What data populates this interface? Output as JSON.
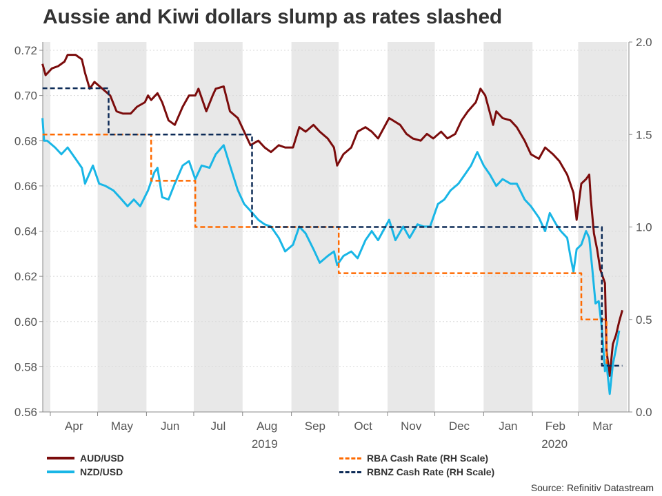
{
  "title": "Aussie and Kiwi dollars slump as rates slashed",
  "source": "Source: Refinitiv Datastream",
  "chart_data": {
    "type": "line",
    "title": "Aussie and Kiwi dollars slump as rates slashed",
    "x_range": [
      "2019-03-27",
      "2020-03-31"
    ],
    "month_labels": [
      "Apr",
      "May",
      "Jun",
      "Jul",
      "Aug",
      "Sep",
      "Oct",
      "Nov",
      "Dec",
      "Jan",
      "Feb",
      "Mar"
    ],
    "year_labels": [
      {
        "text": "2019",
        "month": "2019-08"
      },
      {
        "text": "2020",
        "month": "2020-02"
      }
    ],
    "left_axis": {
      "ylim": [
        0.56,
        0.72
      ],
      "ticks": [
        "0.56",
        "0.58",
        "0.60",
        "0.62",
        "0.64",
        "0.66",
        "0.68",
        "0.70",
        "0.72"
      ]
    },
    "right_axis": {
      "ylim": [
        0.0,
        2.0
      ],
      "ticks": [
        "0.0",
        "0.5",
        "1.0",
        "1.5",
        "2.0"
      ]
    },
    "shading": "alternate months shaded grey",
    "grid": true,
    "legend_position": "bottom",
    "colors": {
      "aud": "#7b0c0c",
      "nzd": "#19b6e6",
      "rba": "#ff6a00",
      "rbnz": "#0d2b57",
      "shade": "#e8e8e8"
    },
    "series": [
      {
        "name": "AUD/USD",
        "axis": "left",
        "style": "solid",
        "color": "#7b0c0c",
        "points": [
          [
            "2019-03-27",
            0.714
          ],
          [
            "2019-03-29",
            0.709
          ],
          [
            "2019-04-02",
            0.712
          ],
          [
            "2019-04-06",
            0.713
          ],
          [
            "2019-04-10",
            0.715
          ],
          [
            "2019-04-12",
            0.718
          ],
          [
            "2019-04-17",
            0.718
          ],
          [
            "2019-04-21",
            0.716
          ],
          [
            "2019-04-23",
            0.71
          ],
          [
            "2019-04-26",
            0.703
          ],
          [
            "2019-04-29",
            0.706
          ],
          [
            "2019-05-04",
            0.703
          ],
          [
            "2019-05-09",
            0.7
          ],
          [
            "2019-05-13",
            0.693
          ],
          [
            "2019-05-17",
            0.692
          ],
          [
            "2019-05-22",
            0.692
          ],
          [
            "2019-05-26",
            0.695
          ],
          [
            "2019-05-31",
            0.697
          ],
          [
            "2019-06-02",
            0.7
          ],
          [
            "2019-06-04",
            0.698
          ],
          [
            "2019-06-08",
            0.701
          ],
          [
            "2019-06-11",
            0.697
          ],
          [
            "2019-06-15",
            0.689
          ],
          [
            "2019-06-19",
            0.687
          ],
          [
            "2019-06-24",
            0.695
          ],
          [
            "2019-06-28",
            0.7
          ],
          [
            "2019-07-02",
            0.7
          ],
          [
            "2019-07-04",
            0.703
          ],
          [
            "2019-07-09",
            0.693
          ],
          [
            "2019-07-13",
            0.7
          ],
          [
            "2019-07-15",
            0.703
          ],
          [
            "2019-07-20",
            0.704
          ],
          [
            "2019-07-24",
            0.693
          ],
          [
            "2019-07-29",
            0.69
          ],
          [
            "2019-08-02",
            0.684
          ],
          [
            "2019-08-06",
            0.678
          ],
          [
            "2019-08-11",
            0.68
          ],
          [
            "2019-08-15",
            0.677
          ],
          [
            "2019-08-19",
            0.675
          ],
          [
            "2019-08-24",
            0.678
          ],
          [
            "2019-08-28",
            0.677
          ],
          [
            "2019-09-02",
            0.677
          ],
          [
            "2019-09-06",
            0.686
          ],
          [
            "2019-09-10",
            0.684
          ],
          [
            "2019-09-15",
            0.687
          ],
          [
            "2019-09-19",
            0.684
          ],
          [
            "2019-09-24",
            0.681
          ],
          [
            "2019-09-28",
            0.677
          ],
          [
            "2019-09-30",
            0.669
          ],
          [
            "2019-10-04",
            0.674
          ],
          [
            "2019-10-09",
            0.677
          ],
          [
            "2019-10-13",
            0.684
          ],
          [
            "2019-10-18",
            0.686
          ],
          [
            "2019-10-22",
            0.684
          ],
          [
            "2019-10-26",
            0.681
          ],
          [
            "2019-11-02",
            0.69
          ],
          [
            "2019-11-09",
            0.687
          ],
          [
            "2019-11-13",
            0.683
          ],
          [
            "2019-11-17",
            0.681
          ],
          [
            "2019-11-22",
            0.68
          ],
          [
            "2019-11-26",
            0.683
          ],
          [
            "2019-11-30",
            0.681
          ],
          [
            "2019-12-05",
            0.684
          ],
          [
            "2019-12-09",
            0.681
          ],
          [
            "2019-12-14",
            0.683
          ],
          [
            "2019-12-18",
            0.689
          ],
          [
            "2019-12-22",
            0.693
          ],
          [
            "2019-12-27",
            0.697
          ],
          [
            "2019-12-30",
            0.703
          ],
          [
            "2020-01-02",
            0.7
          ],
          [
            "2020-01-07",
            0.687
          ],
          [
            "2020-01-09",
            0.693
          ],
          [
            "2020-01-13",
            0.69
          ],
          [
            "2020-01-18",
            0.689
          ],
          [
            "2020-01-22",
            0.686
          ],
          [
            "2020-01-27",
            0.68
          ],
          [
            "2020-01-31",
            0.674
          ],
          [
            "2020-02-05",
            0.672
          ],
          [
            "2020-02-09",
            0.677
          ],
          [
            "2020-02-14",
            0.674
          ],
          [
            "2020-02-18",
            0.671
          ],
          [
            "2020-02-23",
            0.665
          ],
          [
            "2020-02-27",
            0.657
          ],
          [
            "2020-02-29",
            0.645
          ],
          [
            "2020-03-03",
            0.661
          ],
          [
            "2020-03-06",
            0.663
          ],
          [
            "2020-03-08",
            0.665
          ],
          [
            "2020-03-09",
            0.654
          ],
          [
            "2020-03-11",
            0.639
          ],
          [
            "2020-03-13",
            0.632
          ],
          [
            "2020-03-15",
            0.623
          ],
          [
            "2020-03-18",
            0.617
          ],
          [
            "2020-03-19",
            0.587
          ],
          [
            "2020-03-21",
            0.576
          ],
          [
            "2020-03-23",
            0.59
          ],
          [
            "2020-03-25",
            0.594
          ],
          [
            "2020-03-27",
            0.6
          ],
          [
            "2020-03-29",
            0.605
          ]
        ]
      },
      {
        "name": "NZD/USD",
        "axis": "left",
        "style": "solid",
        "color": "#19b6e6",
        "points": [
          [
            "2019-03-27",
            0.69
          ],
          [
            "2019-03-28",
            0.68
          ],
          [
            "2019-03-30",
            0.68
          ],
          [
            "2019-04-04",
            0.677
          ],
          [
            "2019-04-08",
            0.674
          ],
          [
            "2019-04-12",
            0.677
          ],
          [
            "2019-04-17",
            0.672
          ],
          [
            "2019-04-21",
            0.668
          ],
          [
            "2019-04-23",
            0.661
          ],
          [
            "2019-04-28",
            0.669
          ],
          [
            "2019-05-02",
            0.661
          ],
          [
            "2019-05-06",
            0.66
          ],
          [
            "2019-05-11",
            0.658
          ],
          [
            "2019-05-15",
            0.655
          ],
          [
            "2019-05-20",
            0.651
          ],
          [
            "2019-05-24",
            0.654
          ],
          [
            "2019-05-28",
            0.651
          ],
          [
            "2019-06-02",
            0.658
          ],
          [
            "2019-06-06",
            0.666
          ],
          [
            "2019-06-08",
            0.668
          ],
          [
            "2019-06-11",
            0.655
          ],
          [
            "2019-06-15",
            0.654
          ],
          [
            "2019-06-19",
            0.661
          ],
          [
            "2019-06-24",
            0.669
          ],
          [
            "2019-06-28",
            0.671
          ],
          [
            "2019-07-02",
            0.663
          ],
          [
            "2019-07-06",
            0.669
          ],
          [
            "2019-07-11",
            0.668
          ],
          [
            "2019-07-15",
            0.674
          ],
          [
            "2019-07-20",
            0.678
          ],
          [
            "2019-07-24",
            0.669
          ],
          [
            "2019-07-29",
            0.658
          ],
          [
            "2019-08-02",
            0.652
          ],
          [
            "2019-08-06",
            0.649
          ],
          [
            "2019-08-11",
            0.645
          ],
          [
            "2019-08-15",
            0.643
          ],
          [
            "2019-08-19",
            0.642
          ],
          [
            "2019-08-24",
            0.637
          ],
          [
            "2019-08-28",
            0.631
          ],
          [
            "2019-09-02",
            0.634
          ],
          [
            "2019-09-06",
            0.642
          ],
          [
            "2019-09-10",
            0.639
          ],
          [
            "2019-09-15",
            0.632
          ],
          [
            "2019-09-19",
            0.626
          ],
          [
            "2019-09-24",
            0.629
          ],
          [
            "2019-09-28",
            0.631
          ],
          [
            "2019-09-30",
            0.625
          ],
          [
            "2019-10-04",
            0.629
          ],
          [
            "2019-10-09",
            0.631
          ],
          [
            "2019-10-13",
            0.628
          ],
          [
            "2019-10-18",
            0.636
          ],
          [
            "2019-10-22",
            0.64
          ],
          [
            "2019-10-26",
            0.636
          ],
          [
            "2019-11-02",
            0.645
          ],
          [
            "2019-11-06",
            0.636
          ],
          [
            "2019-11-11",
            0.642
          ],
          [
            "2019-11-15",
            0.637
          ],
          [
            "2019-11-20",
            0.643
          ],
          [
            "2019-11-24",
            0.642
          ],
          [
            "2019-11-28",
            0.642
          ],
          [
            "2019-12-03",
            0.652
          ],
          [
            "2019-12-07",
            0.654
          ],
          [
            "2019-12-11",
            0.658
          ],
          [
            "2019-12-16",
            0.661
          ],
          [
            "2019-12-20",
            0.665
          ],
          [
            "2019-12-24",
            0.669
          ],
          [
            "2019-12-28",
            0.675
          ],
          [
            "2020-01-01",
            0.669
          ],
          [
            "2020-01-05",
            0.665
          ],
          [
            "2020-01-09",
            0.66
          ],
          [
            "2020-01-13",
            0.663
          ],
          [
            "2020-01-18",
            0.661
          ],
          [
            "2020-01-22",
            0.661
          ],
          [
            "2020-01-27",
            0.654
          ],
          [
            "2020-01-31",
            0.651
          ],
          [
            "2020-02-05",
            0.646
          ],
          [
            "2020-02-09",
            0.64
          ],
          [
            "2020-02-12",
            0.648
          ],
          [
            "2020-02-16",
            0.643
          ],
          [
            "2020-02-19",
            0.64
          ],
          [
            "2020-02-23",
            0.637
          ],
          [
            "2020-02-25",
            0.629
          ],
          [
            "2020-02-27",
            0.622
          ],
          [
            "2020-02-29",
            0.632
          ],
          [
            "2020-03-03",
            0.634
          ],
          [
            "2020-03-06",
            0.64
          ],
          [
            "2020-03-08",
            0.637
          ],
          [
            "2020-03-10",
            0.623
          ],
          [
            "2020-03-12",
            0.608
          ],
          [
            "2020-03-14",
            0.609
          ],
          [
            "2020-03-16",
            0.597
          ],
          [
            "2020-03-18",
            0.578
          ],
          [
            "2020-03-19",
            0.581
          ],
          [
            "2020-03-21",
            0.568
          ],
          [
            "2020-03-23",
            0.581
          ],
          [
            "2020-03-25",
            0.588
          ],
          [
            "2020-03-27",
            0.596
          ]
        ]
      },
      {
        "name": "RBA Cash Rate (RH Scale)",
        "axis": "right",
        "style": "dashed",
        "color": "#ff6a00",
        "points": [
          [
            "2019-03-27",
            1.5
          ],
          [
            "2019-06-04",
            1.5
          ],
          [
            "2019-06-04",
            1.25
          ],
          [
            "2019-07-02",
            1.25
          ],
          [
            "2019-07-02",
            1.0
          ],
          [
            "2019-10-01",
            1.0
          ],
          [
            "2019-10-01",
            0.75
          ],
          [
            "2020-03-03",
            0.75
          ],
          [
            "2020-03-03",
            0.5
          ],
          [
            "2020-03-19",
            0.5
          ],
          [
            "2020-03-19",
            0.25
          ]
        ]
      },
      {
        "name": "RBNZ Cash Rate (RH Scale)",
        "axis": "right",
        "style": "dashed",
        "color": "#0d2b57",
        "points": [
          [
            "2019-03-27",
            1.75
          ],
          [
            "2019-05-08",
            1.75
          ],
          [
            "2019-05-08",
            1.5
          ],
          [
            "2019-08-07",
            1.5
          ],
          [
            "2019-08-07",
            1.0
          ],
          [
            "2020-03-16",
            1.0
          ],
          [
            "2020-03-16",
            0.25
          ],
          [
            "2020-03-29",
            0.25
          ]
        ]
      }
    ]
  }
}
